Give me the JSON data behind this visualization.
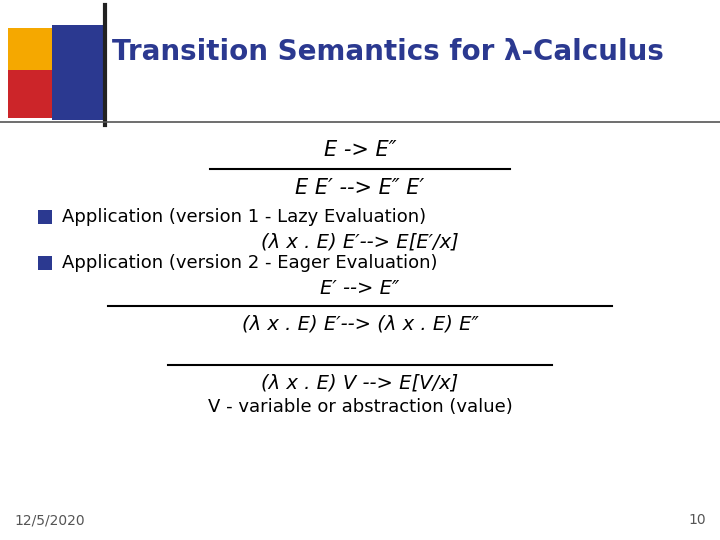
{
  "title": "Transition Semantics for λ-Calculus",
  "title_color": "#2B3990",
  "title_fontsize": 20,
  "bg_color": "#ffffff",
  "footer_date": "12/5/2020",
  "footer_page": "10",
  "rule1_num": "E -> E″",
  "rule1_den": "E E′ --> E″ E′",
  "bullet1": "Application (version 1 - Lazy Evaluation)",
  "bullet1_formula": "(λ x . E) E′--> E[E′/x]",
  "bullet2": "Application (version 2 - Eager Evaluation)",
  "rule2_num": "E′ --> E″",
  "rule2_den": "(λ x . E) E′--> (λ x . E) E″",
  "rule3_den": "(λ x . E) V --> E[V/x]",
  "rule3_note": "V - variable or abstraction (value)"
}
